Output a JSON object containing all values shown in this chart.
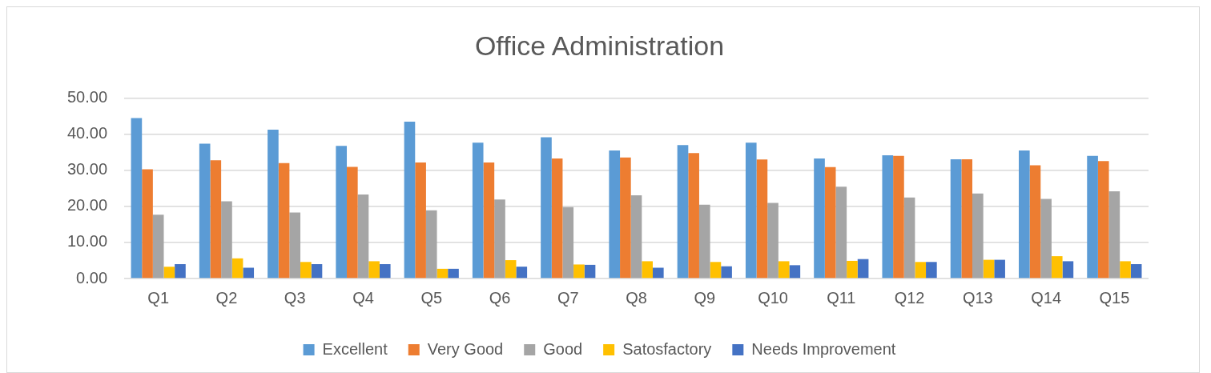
{
  "chart_data": {
    "type": "bar",
    "title": "Office Administration",
    "categories": [
      "Q1",
      "Q2",
      "Q3",
      "Q4",
      "Q5",
      "Q6",
      "Q7",
      "Q8",
      "Q9",
      "Q10",
      "Q11",
      "Q12",
      "Q13",
      "Q14",
      "Q15"
    ],
    "series": [
      {
        "name": "Excellent",
        "color": "#5b9bd5",
        "values": [
          44.5,
          37.4,
          41.3,
          36.8,
          43.5,
          37.7,
          39.2,
          35.5,
          37.0,
          37.7,
          33.3,
          34.2,
          33.1,
          35.5,
          34.0
        ]
      },
      {
        "name": "Very Good",
        "color": "#ed7d31",
        "values": [
          30.3,
          32.8,
          32.0,
          31.0,
          32.2,
          32.2,
          33.3,
          33.6,
          34.8,
          33.0,
          30.9,
          34.0,
          33.1,
          31.4,
          32.6
        ]
      },
      {
        "name": "Good",
        "color": "#a5a5a5",
        "values": [
          17.7,
          21.4,
          18.3,
          23.3,
          18.9,
          21.9,
          19.8,
          23.1,
          20.5,
          21.0,
          25.5,
          22.5,
          23.6,
          22.1,
          24.2
        ]
      },
      {
        "name": "Satosfactory",
        "color": "#ffc000",
        "values": [
          3.3,
          5.6,
          4.6,
          4.8,
          2.7,
          5.1,
          3.9,
          4.8,
          4.6,
          4.8,
          4.9,
          4.6,
          5.2,
          6.2,
          4.8
        ]
      },
      {
        "name": "Needs Improvement",
        "color": "#4472c4",
        "values": [
          4.0,
          3.0,
          4.0,
          4.0,
          2.7,
          3.3,
          3.8,
          3.0,
          3.4,
          3.7,
          5.4,
          4.6,
          5.2,
          4.8,
          4.0
        ]
      }
    ],
    "ylim": [
      0,
      50
    ],
    "yticks": [
      {
        "value": 0,
        "label": "0.00"
      },
      {
        "value": 10,
        "label": "10.00"
      },
      {
        "value": 20,
        "label": "20.00"
      },
      {
        "value": 30,
        "label": "30.00"
      },
      {
        "value": 40,
        "label": "40.00"
      },
      {
        "value": 50,
        "label": "50.00"
      }
    ],
    "grid": "y",
    "legend": "bottom"
  }
}
